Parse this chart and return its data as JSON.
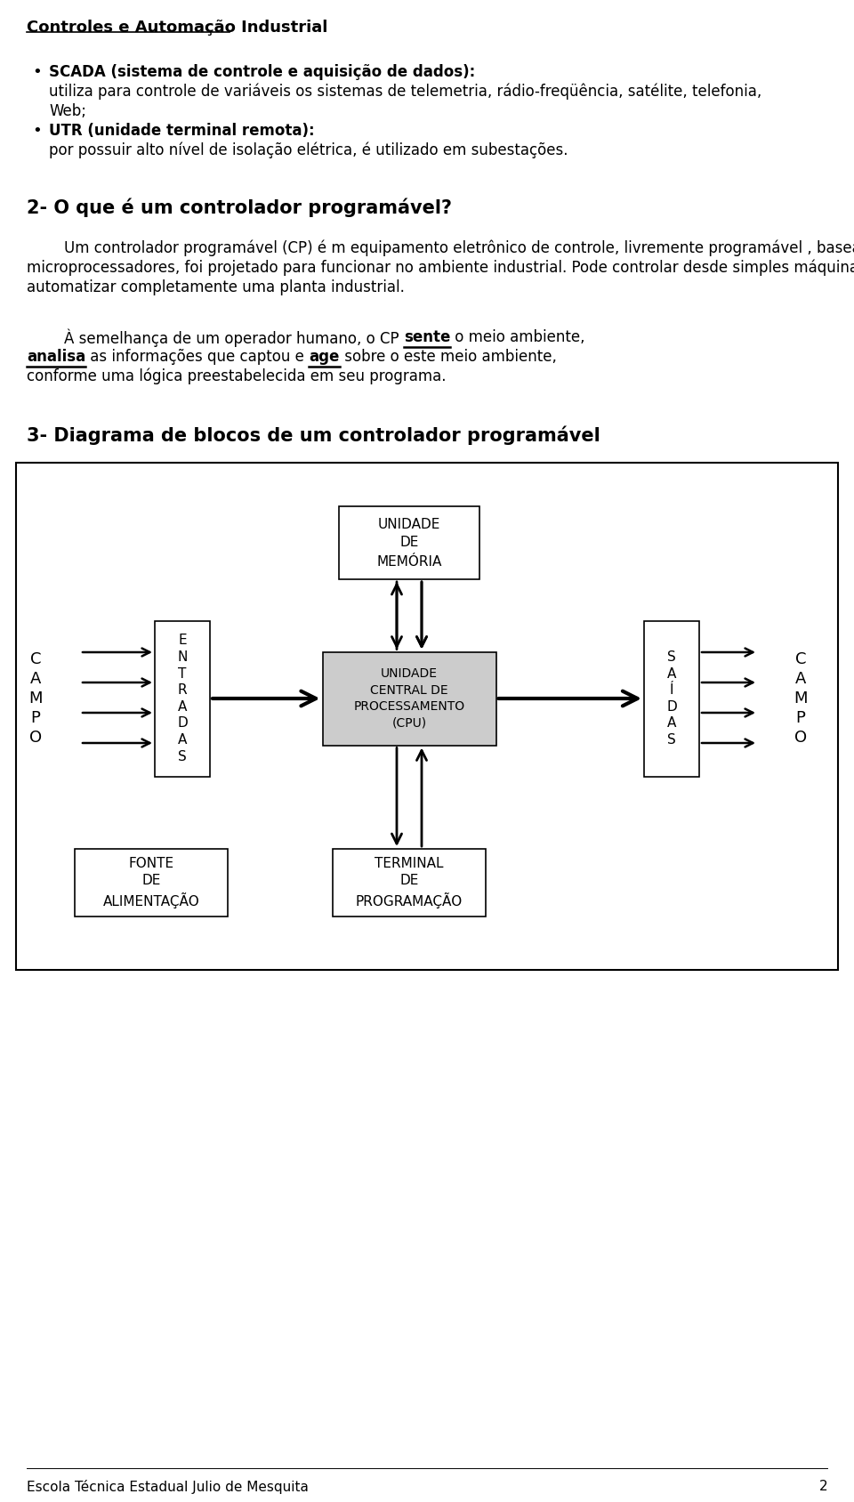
{
  "bg_color": "#ffffff",
  "text_color": "#000000",
  "title": "Controles e Automação Industrial",
  "section2_title": "2- O que é um controlador programável?",
  "section3_title": "3- Diagrama de blocos de um controlador programável",
  "footer": "Escola Técnica Estadual Julio de Mesquita",
  "footer_page": "2",
  "bullet1_bold": "SCADA (sistema de controle e aquisição de dados):",
  "bullet1_line2": "utiliza para controle de variáveis os sistemas de telemetria, rádio-freqüência, satélite, telefonia,",
  "bullet1_line3": "Web;",
  "bullet2_bold": "UTR (unidade terminal remota):",
  "bullet2_line2": "por possuir alto nível de isolação elétrica, é utilizado em subestações.",
  "para1_lines": [
    "        Um controlador programável (CP) é m equipamento eletrônico de controle, livremente programável , baseado em",
    "microprocessadores, foi projetado para funcionar no ambiente industrial. Pode controlar desde simples máquinas até",
    "automatizar completamente uma planta industrial."
  ],
  "para2_line1_pre": "        À semelhança de um operador humano, o CP ",
  "para2_bold1": "sente",
  "para2_line1_post": " o meio ambiente,",
  "para2_line2_bold2": "analisa",
  "para2_line2_mid": " as informações que captou e ",
  "para2_bold3": "age",
  "para2_line2_post": " sobre o este meio ambiente,",
  "para2_line3": "conforme uma lógica preestabelecida em seu programa.",
  "mem_label": "UNIDADE\nDE\nMEMÓRIA",
  "cpu_label": "UNIDADE\nCENTRAL DE\nPROCESSAMENTO\n(CPU)",
  "ent_label": "E\nN\nT\nR\nA\nD\nA\nS",
  "sai_label": "S\nA\nÍ\nD\nA\nS",
  "fonte_label": "FONTE\nDE\nALIMENTAÇÃO",
  "term_label": "TERMINAL\nDE\nPROGRAMAÇÃO",
  "campo_label": "C\nA\nM\nP\nO"
}
